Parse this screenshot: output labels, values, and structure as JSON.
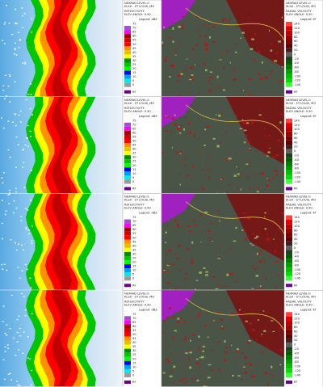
{
  "rows": [
    {
      "reflectivity": {
        "header": [
          "NEXRAD LEVEL-II",
          "KLSX - ST LOUIS, MO"
        ],
        "product": "REFLECTIVITY",
        "elevation": "ELEV ANGLE: 0.50"
      },
      "velocity": {
        "header": [
          "NEXRAD LEVEL-II",
          "KLSX - ST LOUIS, MO"
        ],
        "product": "RADIAL VELOCITY",
        "elevation": "ELEV ANGLE: 0.50"
      }
    },
    {
      "reflectivity": {
        "header": [
          "NEXRAD LEVEL-II",
          "KLSX - ST LOUIS, MO"
        ],
        "product": "REFLECTIVITY",
        "elevation": "ELEV ANGLE: 0.50"
      },
      "velocity": {
        "header": [
          "NEXRAD LEVEL-II",
          "KLSX - ST LOUIS, MO"
        ],
        "product": "RADIAL VELOCITY",
        "elevation": "ELEV ANGLE: 0.50"
      }
    },
    {
      "reflectivity": {
        "header": [
          "NEXRAD LEVEL-II",
          "KLSX - ST LOUIS, MO"
        ],
        "product": "REFLECTIVITY",
        "elevation": "ELEV ANGLE: 0.50"
      },
      "velocity": {
        "header": [
          "NEXRAD LEVEL-II",
          "KLSX - ST LOUIS, MO"
        ],
        "product": "RADIAL VELOCITY",
        "elevation": "ELEV ANGLE: 0.50"
      }
    },
    {
      "reflectivity": {
        "header": [
          "NEXRAD LEVEL-II",
          "KLSX - ST LOUIS, MO"
        ],
        "product": "REFLECTIVITY",
        "elevation": "ELEV ANGLE: 0.50"
      },
      "velocity": {
        "header": [
          "NEXRAD LEVEL-II",
          "KLSX - ST LOUIS, MO"
        ],
        "product": "RADIAL VELOCITY",
        "elevation": "ELEV ANGLE: 0.50"
      }
    }
  ],
  "legends": {
    "reflectivity": {
      "title": "Legend: dBZ",
      "labels": [
        "75",
        "70",
        "65",
        "60",
        "55",
        "50",
        "45",
        "40",
        "35",
        "30",
        "25",
        "20",
        "15",
        "10",
        "5",
        "0"
      ],
      "rf": "RF"
    },
    "velocity": {
      "title": "Legend: KT",
      "labels": [
        "140",
        "120",
        "100",
        "80",
        "60",
        "40",
        "20",
        "0",
        "-20",
        "-40",
        "-60",
        "-80",
        "-100",
        "-120",
        "-140"
      ],
      "rf": "RF"
    }
  }
}
